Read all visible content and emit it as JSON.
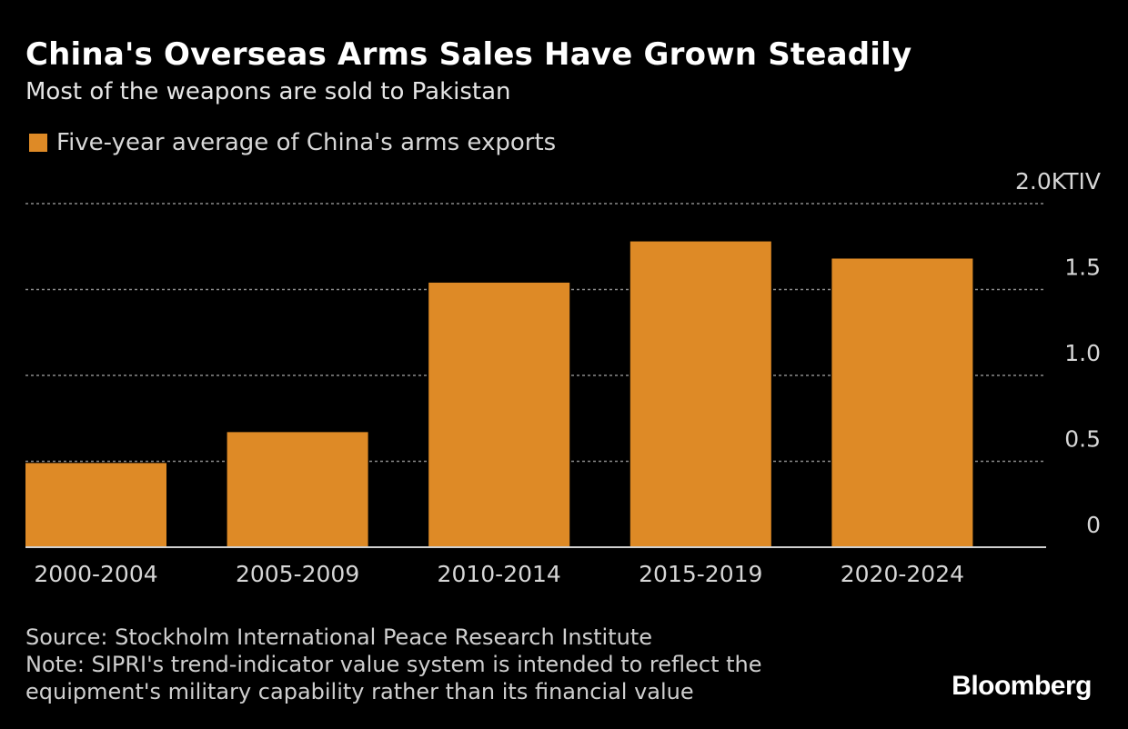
{
  "header": {
    "title": "China's Overseas Arms Sales Have Grown Steadily",
    "subtitle": "Most of the weapons are sold to Pakistan"
  },
  "legend": {
    "label": "Five-year average of China's arms exports"
  },
  "colors": {
    "bar": "#de8a26",
    "grid": "#8a8a8a",
    "baseline": "#d0d0d0",
    "tick_text": "#d6d6d6"
  },
  "chart_data": {
    "type": "bar",
    "title": "China's Overseas Arms Sales Have Grown Steadily",
    "subtitle": "Most of the weapons are sold to Pakistan",
    "categories": [
      "2000-2004",
      "2005-2009",
      "2010-2014",
      "2015-2019",
      "2020-2024"
    ],
    "series": [
      {
        "name": "Five-year average of China's arms exports",
        "values": [
          0.49,
          0.67,
          1.54,
          1.78,
          1.68
        ]
      }
    ],
    "ylim": [
      0,
      2.0
    ],
    "yticks": [
      0,
      0.5,
      1.0,
      1.5,
      2.0
    ],
    "ytick_labels": [
      "0",
      "0.5",
      "1.0",
      "1.5",
      "2.0KTIV"
    ],
    "xlabel": "",
    "ylabel": "",
    "grid": true,
    "legend_position": "top-left"
  },
  "footer": {
    "source": "Source: Stockholm International Peace Research Institute",
    "note_line1": "Note: SIPRI's trend-indicator value system is intended to reflect the",
    "note_line2": "equipment's military capability rather than its financial value"
  },
  "brand": {
    "logo_text": "Bloomberg"
  }
}
